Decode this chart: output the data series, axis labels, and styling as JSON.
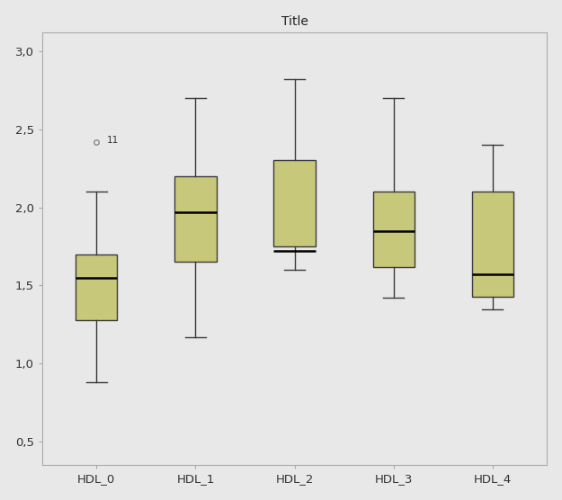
{
  "title": "Title",
  "categories": [
    "HDL_0",
    "HDL_1",
    "HDL_2",
    "HDL_3",
    "HDL_4"
  ],
  "boxes": [
    {
      "whislo": 0.88,
      "q1": 1.28,
      "med": 1.55,
      "q3": 1.7,
      "whishi": 2.1,
      "fliers": [
        2.42
      ]
    },
    {
      "whislo": 1.17,
      "q1": 1.65,
      "med": 1.97,
      "q3": 2.2,
      "whishi": 2.7,
      "fliers": []
    },
    {
      "whislo": 1.6,
      "q1": 1.75,
      "med": 1.72,
      "q3": 2.3,
      "whishi": 2.82,
      "fliers": []
    },
    {
      "whislo": 1.42,
      "q1": 1.62,
      "med": 1.85,
      "q3": 2.1,
      "whishi": 2.7,
      "fliers": []
    },
    {
      "whislo": 1.35,
      "q1": 1.43,
      "med": 1.57,
      "q3": 2.1,
      "whishi": 2.4,
      "fliers": []
    }
  ],
  "flier_labels": [
    [
      "11"
    ],
    [],
    [],
    [],
    []
  ],
  "box_facecolor": "#c8c87a",
  "box_edgecolor": "#3a3a3a",
  "median_color": "#000000",
  "whisker_color": "#3a3a3a",
  "cap_color": "#3a3a3a",
  "flier_edgecolor": "#888888",
  "plot_bg": "#e8e8e8",
  "fig_bg": "#e8e8e8",
  "spine_color": "#aaaaaa",
  "ylim": [
    0.35,
    3.12
  ],
  "yticks": [
    0.5,
    1.0,
    1.5,
    2.0,
    2.5,
    3.0
  ],
  "ytick_labels": [
    "0,5",
    "1,0",
    "1,5",
    "2,0",
    "2,5",
    "3,0"
  ],
  "title_fontsize": 10,
  "tick_fontsize": 9.5,
  "box_width": 0.42,
  "linewidth": 1.0,
  "median_linewidth": 1.8,
  "figsize": [
    6.25,
    5.56
  ],
  "dpi": 100
}
